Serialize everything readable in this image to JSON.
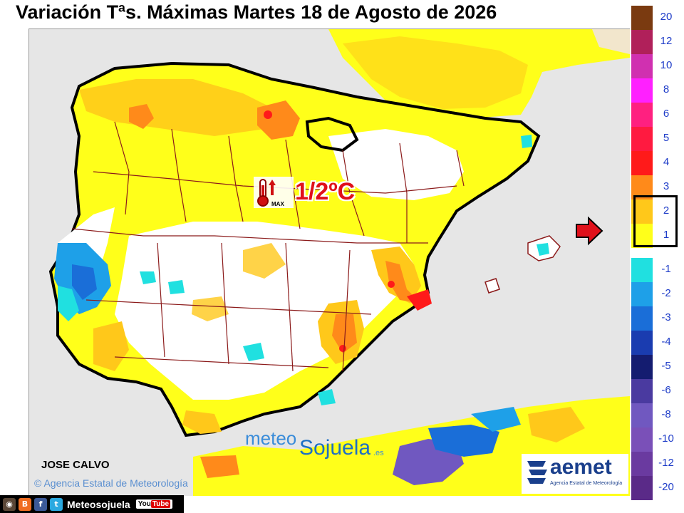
{
  "title": "Variación Tªs. Máximas Martes 18 de Agosto de 2026",
  "highlight_value": "1/2ºC",
  "badge_icon": "thermometer-max-icon",
  "badge_icon_text": "MAX",
  "author": "JOSE CALVO",
  "map_agency_label": "Agencia Estatal de Meteorología",
  "site_logo": {
    "part1": "meteo",
    "part2": "Sojuela",
    "suffix": ".es"
  },
  "aemet": {
    "name": "aemet",
    "sub": "Agencia Estatal de Meteorología"
  },
  "social": {
    "handle": "Meteosojuela",
    "youtube_label": "You",
    "youtube_tube": "Tube"
  },
  "legend": {
    "items": [
      {
        "label": "20",
        "color": "#7a3a10"
      },
      {
        "label": "12",
        "color": "#b0205a"
      },
      {
        "label": "10",
        "color": "#d030b0"
      },
      {
        "label": "8",
        "color": "#ff20ff"
      },
      {
        "label": "6",
        "color": "#ff2080"
      },
      {
        "label": "5",
        "color": "#ff1a40"
      },
      {
        "label": "4",
        "color": "#ff1a1a"
      },
      {
        "label": "3",
        "color": "#ff8a1a"
      },
      {
        "label": "2",
        "color": "#ffc81a"
      },
      {
        "label": "1",
        "color": "#ffff1a"
      },
      {
        "label": "-1",
        "color": "#20e0e0"
      },
      {
        "label": "-2",
        "color": "#1ea0e8"
      },
      {
        "label": "-3",
        "color": "#1a6ed8"
      },
      {
        "label": "-4",
        "color": "#1a3cb0"
      },
      {
        "label": "-5",
        "color": "#141c70"
      },
      {
        "label": "-6",
        "color": "#4a3aa0"
      },
      {
        "label": "-8",
        "color": "#7058c0"
      },
      {
        "label": "-10",
        "color": "#7a50b8"
      },
      {
        "label": "-12",
        "color": "#6a3aa0"
      },
      {
        "label": "-20",
        "color": "#5a2a88"
      }
    ],
    "highlighted": [
      "2",
      "1"
    ]
  },
  "colors": {
    "sea": "#e6e6e6",
    "land_base": "#ffffff",
    "warm_1": "#ffff1a",
    "warm_2": "#ffc81a",
    "warm_3": "#ff8a1a",
    "warm_4": "#ff1a1a",
    "cool_1": "#20e0e0",
    "cool_2": "#1ea0e8",
    "cool_3": "#1a6ed8",
    "border": "#000000",
    "province_border": "#8b1a1a"
  }
}
